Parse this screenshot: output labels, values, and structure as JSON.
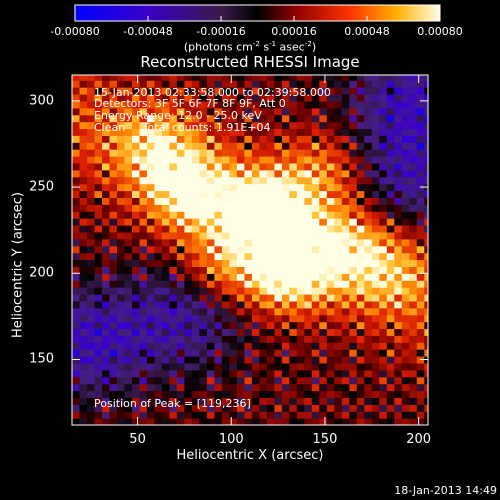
{
  "colorbar": {
    "ticks": [
      "-0.00080",
      "-0.00048",
      "-0.00016",
      "0.00016",
      "0.00048",
      "0.00080"
    ],
    "units_text": "(photons cm",
    "units_sup1": "-2",
    "units_mid": " s",
    "units_sup2": "-1",
    "units_mid2": " asec",
    "units_sup3": "-2",
    "units_end": ")"
  },
  "info": {
    "line1": "15-Jan-2013 02:33:58.000 to 02:39:58.000",
    "line2": "Detectors: 3F 5F 6F 7F 8F 9F, Att 0",
    "line3": "Energy Range: 12.0 - 25.0 keV",
    "line4": "Clean     Total counts: 1.91E+04",
    "peak": "Position of Peak = [119,236]"
  },
  "timestamp": "18-Jan-2013 14:49",
  "chart_data": {
    "type": "heatmap",
    "title": "Reconstructed RHESSI Image",
    "xlabel": "Heliocentric X (arcsec)",
    "ylabel": "Heliocentric Y (arcsec)",
    "xlim": [
      15,
      205
    ],
    "ylim": [
      112,
      315
    ],
    "xticks": [
      50,
      100,
      150,
      200
    ],
    "yticks": [
      150,
      200,
      250,
      300
    ],
    "colorbar_range": [
      -0.0008,
      0.0008
    ],
    "peak": [
      119,
      236
    ],
    "sources": [
      {
        "x": 119,
        "y": 236,
        "intensity": 1.0
      },
      {
        "x": 130,
        "y": 200,
        "intensity": 0.85
      },
      {
        "x": 78,
        "y": 248,
        "intensity": 0.75
      },
      {
        "x": 160,
        "y": 215,
        "intensity": 0.55
      },
      {
        "x": 60,
        "y": 275,
        "intensity": 0.5
      },
      {
        "x": 95,
        "y": 205,
        "intensity": 0.5
      },
      {
        "x": 150,
        "y": 260,
        "intensity": 0.45
      },
      {
        "x": 185,
        "y": 200,
        "intensity": 0.4
      }
    ],
    "negative_regions": [
      {
        "x": 25,
        "y": 160,
        "intensity": -0.6
      },
      {
        "x": 195,
        "y": 300,
        "intensity": -0.55
      },
      {
        "x": 195,
        "y": 255,
        "intensity": -0.5
      },
      {
        "x": 75,
        "y": 175,
        "intensity": -0.5
      }
    ]
  }
}
